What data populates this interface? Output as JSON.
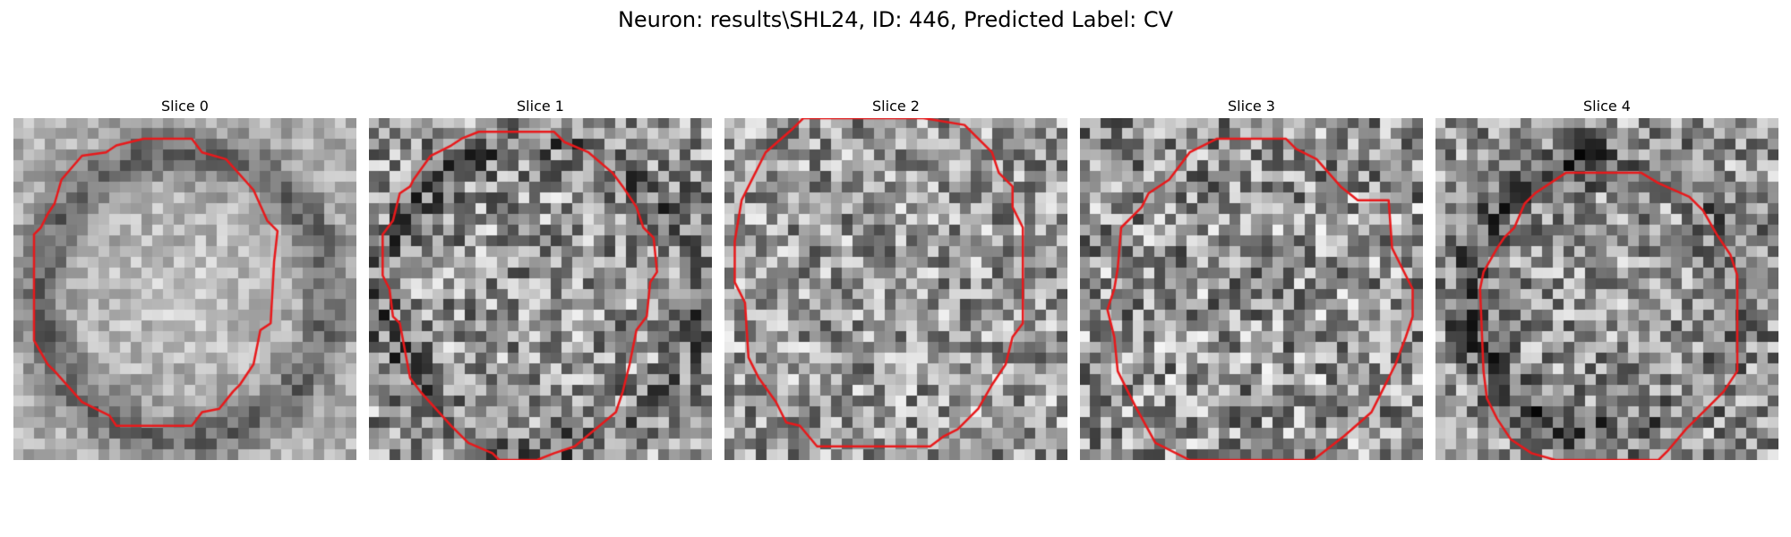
{
  "figure": {
    "title": "Neuron: results\\SHL24, ID: 446, Predicted Label: CV",
    "contour_color": "#e8191b"
  },
  "slices": [
    {
      "title": "Slice 0",
      "shading": "bright-center-dark-ring",
      "contour": [
        [
          0.38,
          0.06
        ],
        [
          0.52,
          0.06
        ],
        [
          0.55,
          0.1
        ],
        [
          0.62,
          0.12
        ],
        [
          0.7,
          0.21
        ],
        [
          0.74,
          0.3
        ],
        [
          0.77,
          0.33
        ],
        [
          0.76,
          0.42
        ],
        [
          0.75,
          0.6
        ],
        [
          0.72,
          0.62
        ],
        [
          0.7,
          0.72
        ],
        [
          0.66,
          0.78
        ],
        [
          0.64,
          0.8
        ],
        [
          0.6,
          0.85
        ],
        [
          0.55,
          0.86
        ],
        [
          0.52,
          0.9
        ],
        [
          0.3,
          0.9
        ],
        [
          0.28,
          0.87
        ],
        [
          0.2,
          0.83
        ],
        [
          0.12,
          0.74
        ],
        [
          0.1,
          0.72
        ],
        [
          0.06,
          0.65
        ],
        [
          0.06,
          0.34
        ],
        [
          0.08,
          0.32
        ],
        [
          0.1,
          0.28
        ],
        [
          0.12,
          0.25
        ],
        [
          0.14,
          0.18
        ],
        [
          0.2,
          0.11
        ],
        [
          0.27,
          0.1
        ],
        [
          0.3,
          0.08
        ]
      ]
    },
    {
      "title": "Slice 1",
      "shading": "mottled-center",
      "contour": [
        [
          0.32,
          0.04
        ],
        [
          0.54,
          0.04
        ],
        [
          0.57,
          0.07
        ],
        [
          0.64,
          0.1
        ],
        [
          0.71,
          0.16
        ],
        [
          0.74,
          0.2
        ],
        [
          0.78,
          0.26
        ],
        [
          0.8,
          0.32
        ],
        [
          0.83,
          0.35
        ],
        [
          0.84,
          0.45
        ],
        [
          0.82,
          0.48
        ],
        [
          0.81,
          0.58
        ],
        [
          0.78,
          0.62
        ],
        [
          0.76,
          0.72
        ],
        [
          0.75,
          0.76
        ],
        [
          0.74,
          0.8
        ],
        [
          0.72,
          0.86
        ],
        [
          0.6,
          0.96
        ],
        [
          0.54,
          0.98
        ],
        [
          0.49,
          1.0
        ],
        [
          0.38,
          1.0
        ],
        [
          0.36,
          0.98
        ],
        [
          0.29,
          0.95
        ],
        [
          0.24,
          0.9
        ],
        [
          0.15,
          0.8
        ],
        [
          0.12,
          0.76
        ],
        [
          0.09,
          0.6
        ],
        [
          0.07,
          0.58
        ],
        [
          0.06,
          0.5
        ],
        [
          0.04,
          0.46
        ],
        [
          0.04,
          0.34
        ],
        [
          0.07,
          0.3
        ],
        [
          0.09,
          0.22
        ],
        [
          0.12,
          0.2
        ],
        [
          0.13,
          0.18
        ],
        [
          0.18,
          0.11
        ],
        [
          0.24,
          0.08
        ],
        [
          0.27,
          0.06
        ]
      ]
    },
    {
      "title": "Slice 2",
      "shading": "uniform-noise",
      "contour": [
        [
          0.23,
          0.0
        ],
        [
          0.2,
          0.03
        ],
        [
          0.12,
          0.1
        ],
        [
          0.07,
          0.2
        ],
        [
          0.05,
          0.24
        ],
        [
          0.03,
          0.36
        ],
        [
          0.03,
          0.48
        ],
        [
          0.06,
          0.54
        ],
        [
          0.07,
          0.7
        ],
        [
          0.1,
          0.76
        ],
        [
          0.15,
          0.83
        ],
        [
          0.18,
          0.89
        ],
        [
          0.22,
          0.9
        ],
        [
          0.27,
          0.96
        ],
        [
          0.6,
          0.96
        ],
        [
          0.64,
          0.93
        ],
        [
          0.68,
          0.91
        ],
        [
          0.74,
          0.85
        ],
        [
          0.78,
          0.78
        ],
        [
          0.82,
          0.72
        ],
        [
          0.84,
          0.64
        ],
        [
          0.87,
          0.6
        ],
        [
          0.87,
          0.32
        ],
        [
          0.84,
          0.26
        ],
        [
          0.84,
          0.2
        ],
        [
          0.8,
          0.16
        ],
        [
          0.78,
          0.1
        ],
        [
          0.73,
          0.05
        ],
        [
          0.7,
          0.02
        ],
        [
          0.58,
          0.0
        ]
      ]
    },
    {
      "title": "Slice 3",
      "shading": "noise-dark-corners",
      "contour": [
        [
          0.4,
          0.06
        ],
        [
          0.6,
          0.06
        ],
        [
          0.63,
          0.09
        ],
        [
          0.69,
          0.12
        ],
        [
          0.76,
          0.2
        ],
        [
          0.81,
          0.24
        ],
        [
          0.9,
          0.24
        ],
        [
          0.91,
          0.38
        ],
        [
          0.93,
          0.42
        ],
        [
          0.97,
          0.5
        ],
        [
          0.97,
          0.58
        ],
        [
          0.95,
          0.64
        ],
        [
          0.92,
          0.72
        ],
        [
          0.88,
          0.8
        ],
        [
          0.85,
          0.86
        ],
        [
          0.77,
          0.93
        ],
        [
          0.68,
          1.0
        ],
        [
          0.6,
          1.0
        ],
        [
          0.32,
          1.0
        ],
        [
          0.22,
          0.95
        ],
        [
          0.16,
          0.84
        ],
        [
          0.14,
          0.8
        ],
        [
          0.11,
          0.74
        ],
        [
          0.1,
          0.64
        ],
        [
          0.08,
          0.56
        ],
        [
          0.1,
          0.5
        ],
        [
          0.11,
          0.44
        ],
        [
          0.12,
          0.32
        ],
        [
          0.18,
          0.26
        ],
        [
          0.2,
          0.22
        ],
        [
          0.26,
          0.18
        ],
        [
          0.32,
          0.1
        ]
      ]
    },
    {
      "title": "Slice 4",
      "shading": "noise-dark-left-ring",
      "contour": [
        [
          0.38,
          0.16
        ],
        [
          0.6,
          0.16
        ],
        [
          0.65,
          0.19
        ],
        [
          0.74,
          0.23
        ],
        [
          0.78,
          0.27
        ],
        [
          0.82,
          0.34
        ],
        [
          0.86,
          0.4
        ],
        [
          0.88,
          0.46
        ],
        [
          0.88,
          0.74
        ],
        [
          0.84,
          0.8
        ],
        [
          0.78,
          0.86
        ],
        [
          0.73,
          0.91
        ],
        [
          0.68,
          0.97
        ],
        [
          0.65,
          1.0
        ],
        [
          0.35,
          1.0
        ],
        [
          0.28,
          0.98
        ],
        [
          0.22,
          0.94
        ],
        [
          0.18,
          0.88
        ],
        [
          0.15,
          0.82
        ],
        [
          0.14,
          0.74
        ],
        [
          0.13,
          0.5
        ],
        [
          0.14,
          0.45
        ],
        [
          0.18,
          0.38
        ],
        [
          0.2,
          0.35
        ],
        [
          0.23,
          0.32
        ],
        [
          0.26,
          0.25
        ],
        [
          0.29,
          0.22
        ]
      ]
    }
  ]
}
